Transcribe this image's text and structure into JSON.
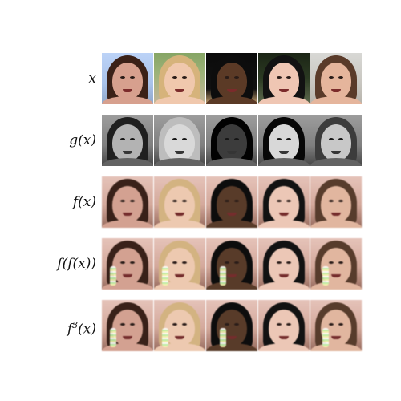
{
  "row_labels": [
    {
      "pre": "x",
      "sup": "",
      "post": ""
    },
    {
      "pre": "g(x)",
      "sup": "",
      "post": ""
    },
    {
      "pre": "f(x)",
      "sup": "",
      "post": ""
    },
    {
      "pre": "f(f(x))",
      "sup": "",
      "post": ""
    },
    {
      "pre": "f",
      "sup": "3",
      "post": "(x)"
    }
  ],
  "grid": {
    "columns": 5,
    "rows": 5
  },
  "images": {
    "rows": [
      {
        "style": "original"
      },
      {
        "style": "grayscale"
      },
      {
        "style": "reconstruction"
      },
      {
        "style": "reconstruction-2"
      },
      {
        "style": "reconstruction-3"
      }
    ]
  }
}
